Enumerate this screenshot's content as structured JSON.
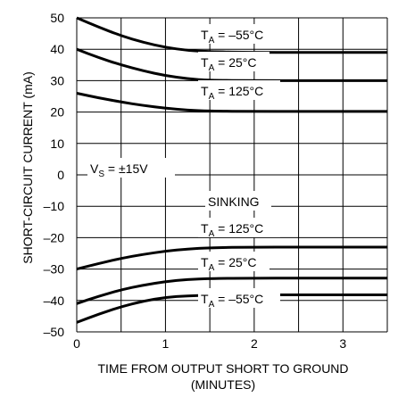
{
  "chart_data": {
    "type": "line",
    "title": "",
    "xlabel": "TIME FROM OUTPUT SHORT TO GROUND",
    "xlabel_line2": "(MINUTES)",
    "ylabel": "SHORT-CIRCUIT CURRENT (mA)",
    "xlim": [
      0,
      3.5
    ],
    "ylim": [
      -50,
      50
    ],
    "grid": true,
    "x_ticks": [
      "0",
      "1",
      "2",
      "3"
    ],
    "y_ticks": [
      "50",
      "40",
      "30",
      "20",
      "10",
      "0",
      "–10",
      "–20",
      "–30",
      "–40",
      "–50"
    ],
    "series": [
      {
        "name": "TA = –55°C (sourcing)",
        "x": [
          0,
          0.25,
          0.5,
          0.75,
          1.0,
          1.25,
          1.5,
          2.0,
          2.5,
          3.0,
          3.5
        ],
        "values": [
          50,
          47,
          44.3,
          42.2,
          40.6,
          39.6,
          39.2,
          39,
          39,
          39,
          39
        ]
      },
      {
        "name": "TA = 25°C (sourcing)",
        "x": [
          0,
          0.25,
          0.5,
          0.75,
          1.0,
          1.25,
          1.5,
          2.0,
          2.5,
          3.0,
          3.5
        ],
        "values": [
          40,
          37.3,
          35,
          33.1,
          31.6,
          30.6,
          30.1,
          30,
          30,
          30,
          30
        ]
      },
      {
        "name": "TA = 125°C (sourcing)",
        "x": [
          0,
          0.25,
          0.5,
          0.75,
          1.0,
          1.25,
          1.5,
          2.0,
          2.5,
          3.0,
          3.5
        ],
        "values": [
          26,
          24.5,
          23.2,
          22.1,
          21.2,
          20.6,
          20.3,
          20.2,
          20.2,
          20.2,
          20.2
        ]
      },
      {
        "name": "TA = 125°C (sinking)",
        "x": [
          0,
          0.25,
          0.5,
          0.75,
          1.0,
          1.25,
          1.5,
          2.0,
          2.5,
          3.0,
          3.5
        ],
        "values": [
          -30,
          -28.2,
          -26.6,
          -25.3,
          -24.3,
          -23.6,
          -23.2,
          -23,
          -23,
          -23,
          -23
        ]
      },
      {
        "name": "TA = 25°C (sinking)",
        "x": [
          0,
          0.25,
          0.5,
          0.75,
          1.0,
          1.25,
          1.5,
          2.0,
          2.5,
          3.0,
          3.5
        ],
        "values": [
          -41,
          -38.6,
          -36.6,
          -35.1,
          -34,
          -33.3,
          -33,
          -32.9,
          -32.9,
          -32.9,
          -32.9
        ]
      },
      {
        "name": "TA = –55°C (sinking)",
        "x": [
          0,
          0.25,
          0.5,
          0.75,
          1.0,
          1.25,
          1.5,
          2.0,
          2.5,
          3.0,
          3.5
        ],
        "values": [
          -47,
          -44.3,
          -42,
          -40.2,
          -39,
          -38.5,
          -38.3,
          -38.2,
          -38.2,
          -38.2,
          -38.2
        ]
      }
    ],
    "annotations": {
      "ta_m55_top": {
        "main": "T",
        "sub": "A",
        "rest": " = –55°C"
      },
      "ta_25_top": {
        "main": "T",
        "sub": "A",
        "rest": " = 25°C"
      },
      "ta_125_top": {
        "main": "T",
        "sub": "A",
        "rest": " = 125°C"
      },
      "vs": {
        "main": "V",
        "sub": "S",
        "rest": " = ±15V"
      },
      "sinking": "SINKING",
      "ta_125_bot": {
        "main": "T",
        "sub": "A",
        "rest": " = 125°C"
      },
      "ta_25_bot": {
        "main": "T",
        "sub": "A",
        "rest": " = 25°C"
      },
      "ta_m55_bot": {
        "main": "T",
        "sub": "A",
        "rest": " = –55°C"
      }
    }
  }
}
